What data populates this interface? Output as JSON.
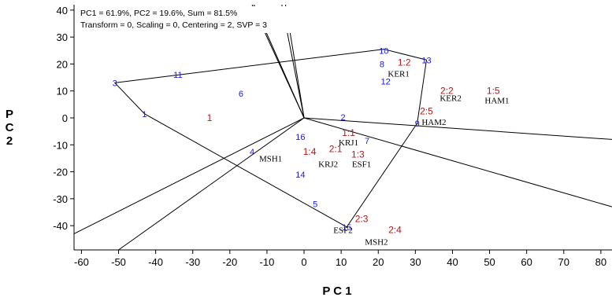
{
  "chart_data": {
    "type": "scatter",
    "title": "",
    "info_lines": [
      "PC1 = 61.9%, PC2 = 19.6%, Sum = 81.5%",
      "Transform = 0, Scaling = 0, Centering = 2, SVP = 3"
    ],
    "xlabel": "P C 1",
    "ylabel": "P\nC\n2",
    "xlim": [
      -62,
      83
    ],
    "ylim": [
      -49,
      42
    ],
    "xticks": [
      -60,
      -50,
      -40,
      -30,
      -20,
      -10,
      0,
      10,
      20,
      30,
      40,
      50,
      60,
      70,
      80
    ],
    "yticks": [
      40,
      30,
      20,
      10,
      0,
      -10,
      -20,
      -30,
      -40
    ],
    "colors": {
      "genotype": "#1a1adf",
      "entry": "#b01818",
      "environment": "#000000",
      "lines": "#000000"
    },
    "genotypes": [
      {
        "label": "1",
        "x": -43,
        "y": 1.5
      },
      {
        "label": "2",
        "x": 10.5,
        "y": 0.3
      },
      {
        "label": "3",
        "x": -51,
        "y": 13
      },
      {
        "label": "4",
        "x": -14,
        "y": -12.5
      },
      {
        "label": "5",
        "x": 3,
        "y": -32
      },
      {
        "label": "6",
        "x": -17,
        "y": 9
      },
      {
        "label": "7",
        "x": 17,
        "y": -8.5
      },
      {
        "label": "8",
        "x": 21,
        "y": 20
      },
      {
        "label": "9",
        "x": 30.5,
        "y": -2
      },
      {
        "label": "10",
        "x": 21.5,
        "y": 25
      },
      {
        "label": "11",
        "x": -34,
        "y": 16
      },
      {
        "label": "12",
        "x": 22,
        "y": 13.5
      },
      {
        "label": "13",
        "x": 33,
        "y": 21.5
      },
      {
        "label": "14",
        "x": -1,
        "y": -21
      },
      {
        "label": "15",
        "x": 11.5,
        "y": -40.5
      },
      {
        "label": "16",
        "x": -1,
        "y": -7
      }
    ],
    "entries": [
      {
        "label": "1",
        "x": -25.5,
        "y": 0
      },
      {
        "label": "1:1",
        "x": 12,
        "y": -5.5
      },
      {
        "label": "1:2",
        "x": 27,
        "y": 20.5
      },
      {
        "label": "1:3",
        "x": 14.5,
        "y": -13.5
      },
      {
        "label": "1:4",
        "x": 1.5,
        "y": -12.5
      },
      {
        "label": "1:5",
        "x": 51,
        "y": 10
      },
      {
        "label": "2:1",
        "x": 8.5,
        "y": -11.5
      },
      {
        "label": "2:2",
        "x": 38.5,
        "y": 10
      },
      {
        "label": "2:3",
        "x": 15.5,
        "y": -37.5
      },
      {
        "label": "2:4",
        "x": 24.5,
        "y": -41.5
      },
      {
        "label": "2:5",
        "x": 33,
        "y": 2.5
      }
    ],
    "environments": [
      {
        "label": "KER1",
        "x": 25.5,
        "y": 16.5
      },
      {
        "label": "KER2",
        "x": 39.5,
        "y": 7.5
      },
      {
        "label": "HAM1",
        "x": 52,
        "y": 6.5
      },
      {
        "label": "HAM2",
        "x": 35,
        "y": -1.5
      },
      {
        "label": "KRJ1",
        "x": 12,
        "y": -9
      },
      {
        "label": "KRJ2",
        "x": 6.5,
        "y": -17
      },
      {
        "label": "ESF1",
        "x": 15.5,
        "y": -17
      },
      {
        "label": "MSH1",
        "x": -9,
        "y": -15
      },
      {
        "label": "ESF2",
        "x": 10.5,
        "y": -41.5
      },
      {
        "label": "MSH2",
        "x": 19.5,
        "y": -46
      }
    ],
    "polygon": [
      [
        -51,
        13
      ],
      [
        21.5,
        25.5
      ],
      [
        33,
        21.5
      ],
      [
        30.5,
        -2
      ],
      [
        11.5,
        -40.5
      ],
      [
        -43,
        1.5
      ]
    ],
    "rays": [
      [
        -14,
        42
      ],
      [
        -13.5,
        42
      ],
      [
        -6,
        42
      ],
      [
        -5,
        42
      ],
      [
        83,
        -8
      ],
      [
        83,
        -33
      ],
      [
        -62,
        -43
      ],
      [
        -50,
        -49
      ]
    ]
  }
}
